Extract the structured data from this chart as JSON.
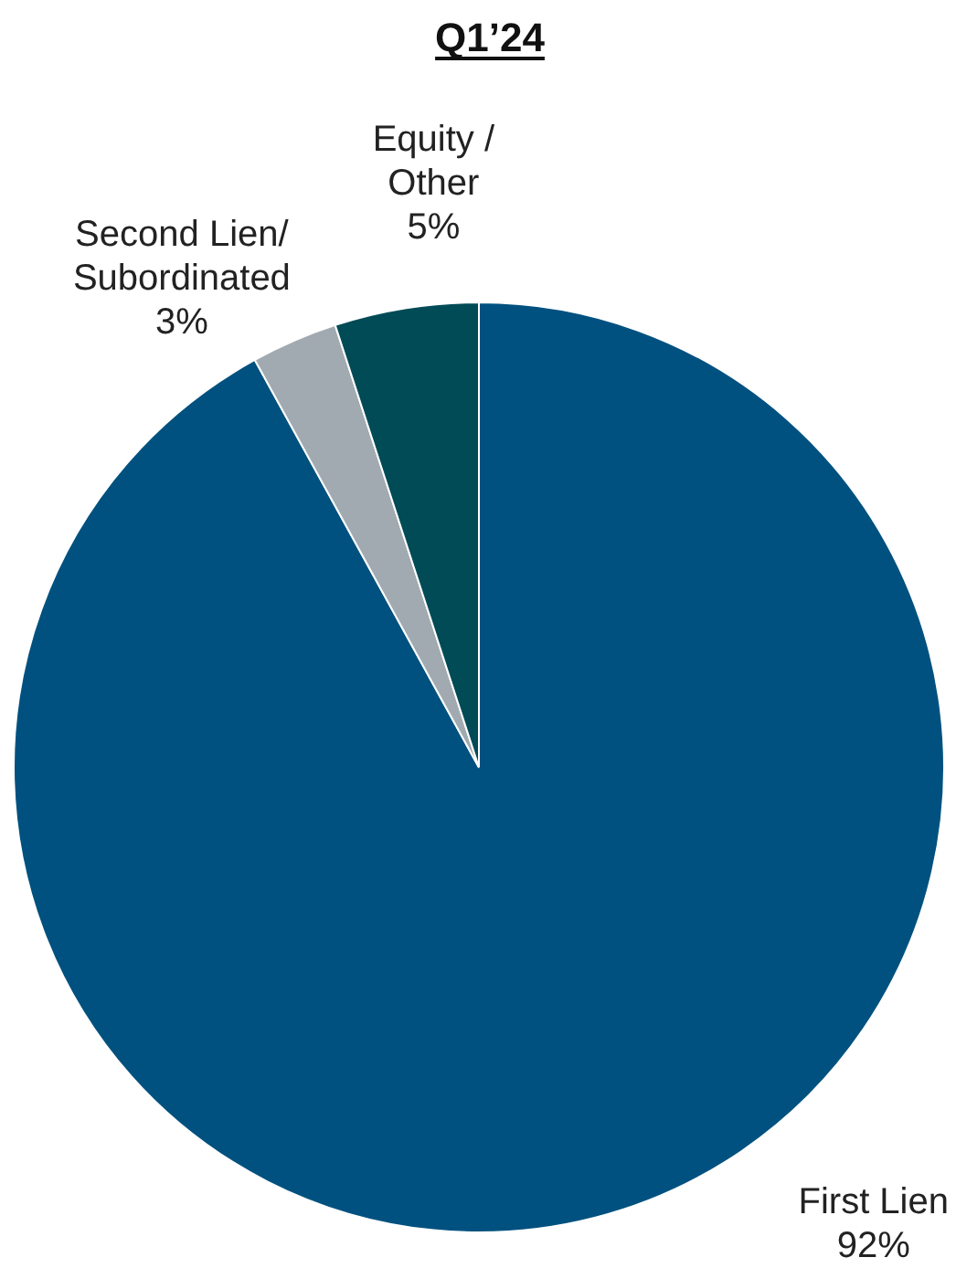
{
  "chart_data": {
    "type": "pie",
    "title": "Q1’24",
    "categories": [
      "First Lien",
      "Second Lien/\nSubordinated",
      "Equity /\nOther"
    ],
    "values": [
      92,
      3,
      5
    ],
    "value_labels": [
      "92%",
      "3%",
      "5%"
    ],
    "colors": [
      "#00517f",
      "#a2aab1",
      "#004b56"
    ],
    "legend": false
  }
}
